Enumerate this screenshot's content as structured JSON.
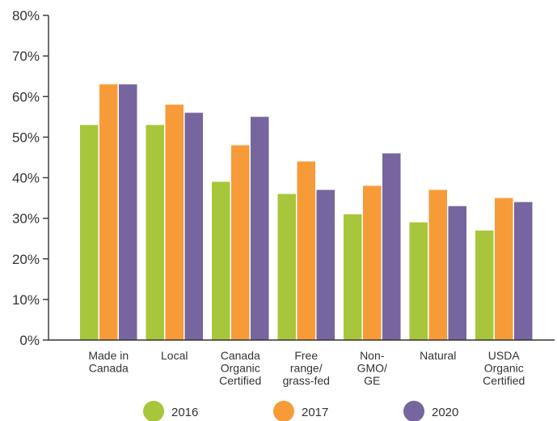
{
  "chart_data": {
    "type": "bar",
    "title": "",
    "xlabel": "",
    "ylabel": "",
    "ylim": [
      0,
      80
    ],
    "yticks": [
      "0%",
      "10%",
      "20%",
      "30%",
      "40%",
      "50%",
      "60%",
      "70%",
      "80%"
    ],
    "categories": [
      [
        "Made in",
        "Canada"
      ],
      [
        "Local"
      ],
      [
        "Canada",
        "Organic",
        "Certified"
      ],
      [
        "Free",
        "range/",
        "grass-fed"
      ],
      [
        "Non-",
        "GMO/",
        "GE"
      ],
      [
        "Natural"
      ],
      [
        "USDA",
        "Organic",
        "Certified"
      ]
    ],
    "series": [
      {
        "name": "2016",
        "color": "#a8c63c",
        "values": [
          53,
          53,
          39,
          36,
          31,
          29,
          27
        ]
      },
      {
        "name": "2017",
        "color": "#f79b38",
        "values": [
          63,
          58,
          48,
          44,
          38,
          37,
          35
        ]
      },
      {
        "name": "2020",
        "color": "#76659e",
        "values": [
          63,
          56,
          55,
          37,
          46,
          33,
          34
        ]
      }
    ],
    "grid": false,
    "legend_position": "bottom"
  }
}
